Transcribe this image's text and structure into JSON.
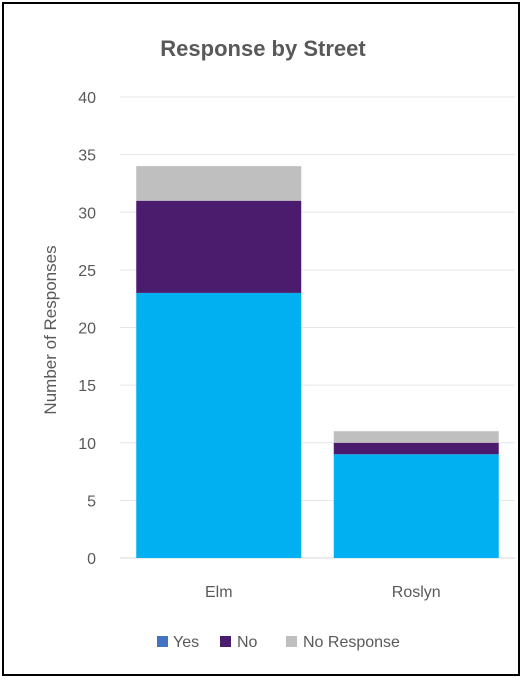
{
  "chart_data": {
    "type": "bar",
    "stacked": true,
    "title": "Response by Street",
    "xlabel": "",
    "ylabel": "Number of Responses",
    "categories": [
      "Elm",
      "Roslyn"
    ],
    "ylim": [
      0,
      40
    ],
    "yticks": [
      0,
      5,
      10,
      15,
      20,
      25,
      30,
      35,
      40
    ],
    "grid": true,
    "legend_position": "bottom",
    "series": [
      {
        "name": "Yes",
        "values": [
          23,
          9
        ],
        "color": "#00B0F0",
        "legend_color": "#4472C4"
      },
      {
        "name": "No",
        "values": [
          8,
          1
        ],
        "color": "#4B1C6E",
        "legend_color": "#4B1C6E"
      },
      {
        "name": "No Response",
        "values": [
          3,
          1
        ],
        "color": "#BFBFBF",
        "legend_color": "#BFBFBF"
      }
    ]
  }
}
